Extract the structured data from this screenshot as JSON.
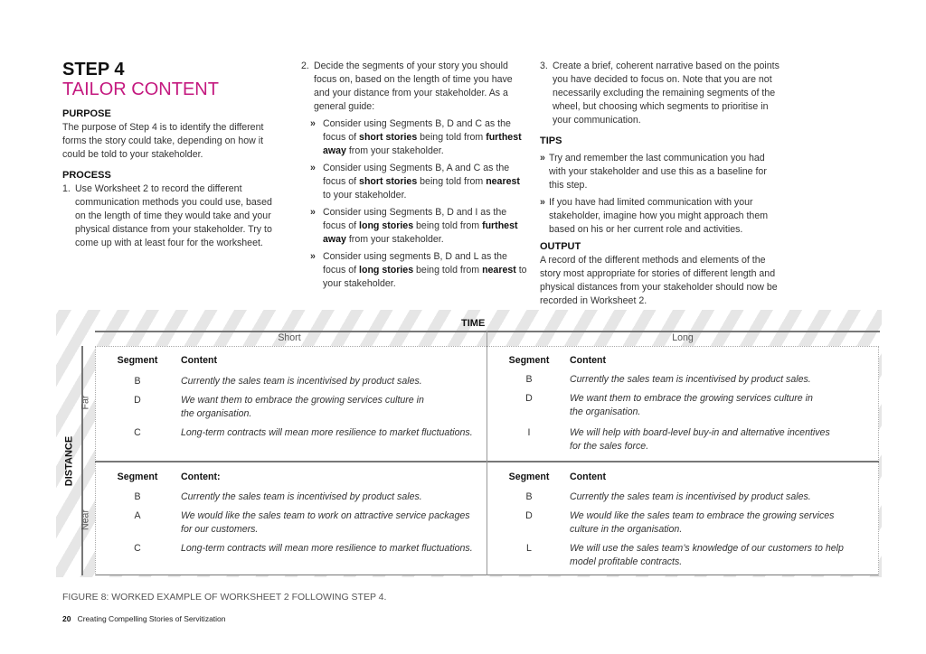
{
  "title": "STEP 4",
  "subtitle": "TAILOR CONTENT",
  "purpose": {
    "heading": "PURPOSE",
    "text": "The purpose of Step 4 is to identify the different forms the story could take, depending on how it could be told to your stakeholder."
  },
  "process": {
    "heading": "PROCESS",
    "step1": "Use Worksheet 2 to record the different communication methods you could use, based on the length of time they would take and your physical distance from your stakeholder. Try to come up with at least four for the worksheet.",
    "step2": "Decide the segments of your story you should focus on, based on the length of time you have and your distance from your stakeholder. As a general guide:",
    "guide": [
      [
        "Consider using Segments B, D and C as the focus of ",
        "short stories",
        " being told from ",
        "furthest away",
        " from your stakeholder."
      ],
      [
        "Consider using Segments B, A and C as the focus of ",
        "short stories",
        " being told from ",
        "nearest",
        " to your stakeholder."
      ],
      [
        "Consider using Segments B, D and I as the focus of ",
        "long stories",
        " being told from ",
        "furthest away",
        " from your stakeholder."
      ],
      [
        "Consider using segments B, D and L as the focus of ",
        "long stories",
        " being told from ",
        "nearest",
        " to your stakeholder."
      ]
    ],
    "step3": "Create a brief, coherent narrative based on the points you have decided to focus on. Note that you are not necessarily excluding the remaining segments of the wheel, but choosing which segments to prioritise in your communication."
  },
  "tips": {
    "heading": "TIPS",
    "items": [
      "Try and remember the last communication you had with your stakeholder and use this as a baseline for this step.",
      "If you have had limited communication with your stakeholder, imagine how you might approach them based on his or her current role and activities."
    ]
  },
  "output": {
    "heading": "OUTPUT",
    "text": "A record of the different methods and elements of the story most appropriate for stories of different length and physical distances from your stakeholder should now be recorded in Worksheet 2."
  },
  "worksheet": {
    "time": "TIME",
    "distance": "DISTANCE",
    "short": "Short",
    "long": "Long",
    "far": "Far",
    "near": "Near",
    "far_short": {
      "h1": "Segment",
      "h2": "Content",
      "rows": [
        [
          "B",
          "Currently the sales team is incentivised by product sales."
        ],
        [
          "D",
          "We want them to embrace the growing services culture in\nthe organisation."
        ],
        [
          "C",
          "Long-term contracts will mean more resilience to market fluctuations."
        ]
      ]
    },
    "far_long": {
      "h1": "Segment",
      "h2": "Content",
      "rows": [
        [
          "B",
          "Currently the sales team is incentivised by product sales."
        ],
        [
          "D",
          "We want them to embrace the growing services culture in\nthe organisation."
        ],
        [
          "I",
          "We will help with board-level buy-in and alternative incentives\nfor the sales force."
        ]
      ]
    },
    "near_short": {
      "h1": "Segment",
      "h2": "Content:",
      "rows": [
        [
          "B",
          "Currently the sales team is incentivised by product sales."
        ],
        [
          "A",
          "We would like the sales team to work on attractive service packages\nfor our customers."
        ],
        [
          "C",
          "Long-term contracts will mean more resilience to market fluctuations."
        ]
      ]
    },
    "near_long": {
      "h1": "Segment",
      "h2": "Content",
      "rows": [
        [
          "B",
          "Currently the sales team is incentivised by product sales."
        ],
        [
          "D",
          "We would like the sales team to embrace the growing services\nculture in the organisation."
        ],
        [
          "L",
          "We will use the sales team’s knowledge of our customers to help\nmodel profitable contracts."
        ]
      ]
    }
  },
  "caption": "FIGURE 8: WORKED EXAMPLE OF WORKSHEET 2 FOLLOWING STEP 4.",
  "footer": {
    "page": "20",
    "title": "Creating Compelling Stories of Servitization"
  }
}
